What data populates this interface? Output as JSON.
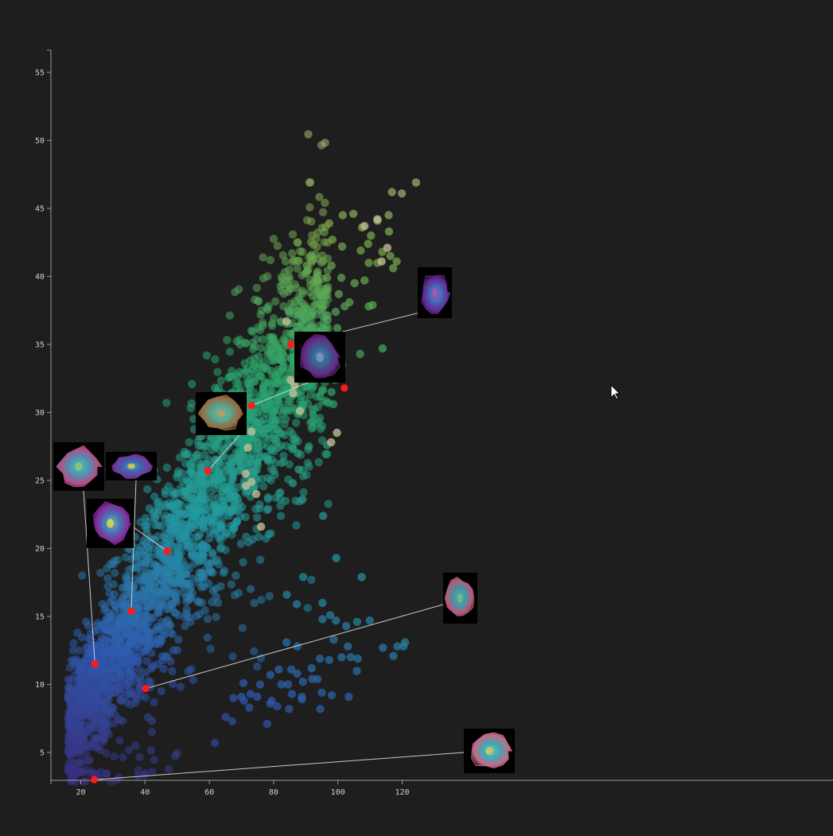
{
  "chart_data": {
    "type": "scatter",
    "title": "",
    "xlabel": "",
    "ylabel": "",
    "xlim": [
      15.5,
      138
    ],
    "ylim": [
      2.3,
      57
    ],
    "x_ticks": [
      "20",
      "40",
      "60",
      "80",
      "100",
      "120"
    ],
    "y_ticks": [
      "5",
      "10",
      "15",
      "20",
      "25",
      "30",
      "35",
      "40",
      "45",
      "50",
      "55"
    ],
    "grid": false,
    "legend": "none",
    "colors": {
      "background": "#1e1e1e",
      "axis": "#9a9a9a",
      "selected": "#ff1a1a",
      "gradient": [
        "#3a2a78",
        "#2f5bb0",
        "#239aa0",
        "#2aa46a",
        "#7aa84a",
        "#c9c39a"
      ]
    },
    "point_cloud": {
      "description_units": "data",
      "trend": {
        "slope": 0.39,
        "intercept": 0.6
      },
      "count_main": 2600,
      "spread_y": 2.6,
      "x_range": [
        16,
        97
      ]
    },
    "extra_points": [
      [
        124.3,
        46.9
      ],
      [
        116.8,
        46.2
      ],
      [
        119.9,
        46.1
      ],
      [
        104.8,
        44.6
      ],
      [
        101.5,
        44.5
      ],
      [
        115.8,
        44.5
      ],
      [
        112.3,
        44.1
      ],
      [
        97.3,
        43.9
      ],
      [
        107.5,
        43.6
      ],
      [
        110.3,
        43.0
      ],
      [
        115.9,
        43.3
      ],
      [
        98.3,
        42.7
      ],
      [
        109.4,
        42.4
      ],
      [
        101.3,
        42.2
      ],
      [
        107.1,
        41.9
      ],
      [
        113.8,
        41.8
      ],
      [
        116.3,
        41.5
      ],
      [
        118.3,
        41.1
      ],
      [
        109.6,
        41.0
      ],
      [
        112.3,
        41.0
      ],
      [
        98.0,
        40.8
      ],
      [
        117.2,
        40.6
      ],
      [
        90.3,
        40.8
      ],
      [
        93.3,
        39.9
      ],
      [
        96.6,
        39.9
      ],
      [
        101.1,
        39.9
      ],
      [
        105.2,
        39.5
      ],
      [
        108.3,
        39.7
      ],
      [
        100.3,
        38.7
      ],
      [
        94.8,
        38.5
      ],
      [
        103.6,
        38.1
      ],
      [
        110.8,
        37.9
      ],
      [
        109.6,
        37.8
      ],
      [
        92.2,
        37.4
      ],
      [
        99.3,
        37.4
      ],
      [
        102.1,
        37.8
      ],
      [
        96.8,
        36.8
      ],
      [
        95.5,
        36.2
      ],
      [
        99.8,
        36.2
      ],
      [
        89.1,
        36.0
      ],
      [
        90.9,
        35.2
      ],
      [
        93.0,
        34.8
      ],
      [
        96.1,
        35.0
      ],
      [
        98.9,
        34.9
      ],
      [
        113.9,
        34.7
      ],
      [
        93.8,
        34.0
      ],
      [
        106.9,
        34.3
      ],
      [
        96.9,
        33.8
      ],
      [
        101.3,
        33.5
      ],
      [
        96.2,
        33.0
      ],
      [
        91.8,
        32.9
      ],
      [
        99.1,
        32.4
      ],
      [
        90.8,
        31.9
      ],
      [
        95.1,
        31.6
      ],
      [
        98.0,
        31.5
      ],
      [
        94.4,
        31.2
      ],
      [
        97.0,
        30.7
      ],
      [
        98.6,
        30.6
      ],
      [
        92.1,
        29.3
      ],
      [
        87.5,
        27.0
      ],
      [
        91.0,
        27.5
      ],
      [
        96.6,
        27.6
      ],
      [
        87.8,
        25.8
      ],
      [
        86.0,
        24.8
      ],
      [
        89.0,
        23.6
      ],
      [
        95.4,
        22.4
      ],
      [
        99.5,
        19.3
      ],
      [
        89.2,
        17.9
      ],
      [
        107.4,
        17.9
      ],
      [
        84.1,
        16.6
      ],
      [
        87.2,
        15.9
      ],
      [
        95.2,
        16.0
      ],
      [
        97.6,
        15.1
      ],
      [
        102.6,
        14.3
      ],
      [
        95.2,
        14.8
      ],
      [
        99.4,
        14.7
      ],
      [
        106.0,
        14.6
      ],
      [
        109.9,
        14.7
      ],
      [
        98.7,
        13.3
      ],
      [
        103.1,
        12.8
      ],
      [
        120.9,
        13.1
      ],
      [
        114.0,
        12.7
      ],
      [
        118.5,
        12.8
      ],
      [
        120.4,
        12.8
      ],
      [
        84.0,
        13.1
      ],
      [
        87.4,
        12.8
      ],
      [
        94.4,
        11.9
      ],
      [
        97.3,
        11.8
      ],
      [
        101.2,
        12.0
      ],
      [
        104.0,
        12.0
      ],
      [
        106.2,
        11.9
      ],
      [
        117.3,
        12.1
      ],
      [
        81.6,
        11.1
      ],
      [
        85.5,
        11.1
      ],
      [
        87.3,
        10.8
      ],
      [
        91.8,
        11.2
      ],
      [
        89.1,
        10.2
      ],
      [
        92.0,
        10.4
      ],
      [
        93.7,
        10.4
      ],
      [
        105.9,
        11.0
      ],
      [
        79.0,
        10.7
      ],
      [
        70.6,
        10.1
      ],
      [
        75.8,
        10.0
      ],
      [
        82.4,
        10.0
      ],
      [
        84.5,
        10.0
      ],
      [
        72.8,
        9.3
      ],
      [
        74.9,
        9.1
      ],
      [
        79.4,
        8.8
      ],
      [
        85.7,
        9.3
      ],
      [
        88.8,
        9.1
      ],
      [
        95.0,
        9.4
      ],
      [
        98.1,
        9.2
      ],
      [
        103.4,
        9.1
      ],
      [
        67.5,
        9.0
      ],
      [
        70.0,
        9.1
      ],
      [
        72.4,
        8.3
      ],
      [
        78.9,
        8.6
      ],
      [
        81.1,
        8.4
      ],
      [
        84.8,
        8.2
      ],
      [
        88.8,
        8.9
      ],
      [
        94.5,
        8.2
      ],
      [
        65.1,
        7.6
      ],
      [
        67.1,
        7.3
      ],
      [
        61.7,
        5.7
      ],
      [
        70.8,
        8.8
      ],
      [
        78.0,
        7.1
      ]
    ],
    "pale_points": [
      [
        112.3,
        44.2
      ],
      [
        108.3,
        43.7
      ],
      [
        115.4,
        42.1
      ],
      [
        113.6,
        41.1
      ],
      [
        100.2,
        35.5
      ],
      [
        84.0,
        36.7
      ],
      [
        91.3,
        32.6
      ],
      [
        85.3,
        32.4
      ],
      [
        86.5,
        32.0
      ],
      [
        86.1,
        31.4
      ],
      [
        88.2,
        30.1
      ],
      [
        99.7,
        28.5
      ],
      [
        97.9,
        27.8
      ],
      [
        73.1,
        28.6
      ],
      [
        72.0,
        27.4
      ],
      [
        71.3,
        25.5
      ],
      [
        73.1,
        24.9
      ],
      [
        74.6,
        24.0
      ],
      [
        76.1,
        21.6
      ],
      [
        71.4,
        24.6
      ]
    ],
    "selected_points": [
      {
        "x": 24.2,
        "y": 3.0
      },
      {
        "x": 24.4,
        "y": 11.5
      },
      {
        "x": 40.2,
        "y": 9.7
      },
      {
        "x": 35.7,
        "y": 15.4
      },
      {
        "x": 46.9,
        "y": 19.8
      },
      {
        "x": 59.5,
        "y": 25.7
      },
      {
        "x": 73.1,
        "y": 30.5
      },
      {
        "x": 85.4,
        "y": 35.0
      },
      {
        "x": 102.0,
        "y": 31.8
      }
    ],
    "thumbnails": [
      {
        "name": "cell-thumbnail-1",
        "target": 1,
        "palette": [
          "#c0508a",
          "#4aa0c0",
          "#8fd070"
        ]
      },
      {
        "name": "cell-thumbnail-2",
        "target": 3,
        "palette": [
          "#7a3aa0",
          "#3a70c0",
          "#e0e040"
        ]
      },
      {
        "name": "cell-thumbnail-3",
        "target": 4,
        "palette": [
          "#8a2aa0",
          "#4a80c0",
          "#e8e84a"
        ]
      },
      {
        "name": "cell-thumbnail-4",
        "target": 5,
        "palette": [
          "#a07040",
          "#5ab0a0",
          "#c0a060"
        ]
      },
      {
        "name": "cell-thumbnail-5",
        "target": 6,
        "palette": [
          "#6a2a8a",
          "#3a6a9a",
          "#80a0c0"
        ]
      },
      {
        "name": "cell-thumbnail-6",
        "target": 7,
        "palette": [
          "#6a2a9a",
          "#4a70c0",
          "#c050b0"
        ]
      },
      {
        "name": "cell-thumbnail-7",
        "target": 2,
        "palette": [
          "#c06080",
          "#40a0b0",
          "#80c080"
        ]
      },
      {
        "name": "cell-thumbnail-8",
        "target": 0,
        "palette": [
          "#d07090",
          "#40b0c0",
          "#e0d060"
        ]
      }
    ]
  },
  "cursor": {
    "icon": "pointer-arrow-icon"
  }
}
